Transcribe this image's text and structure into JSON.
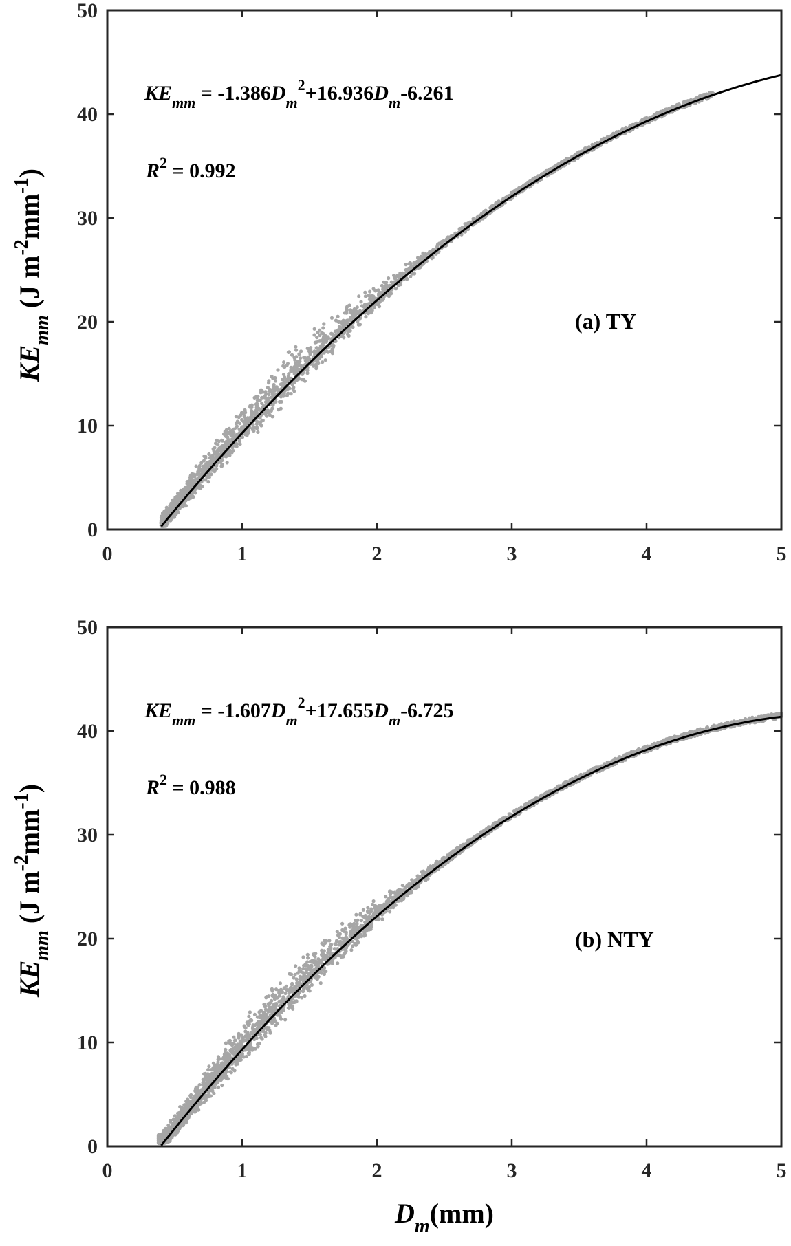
{
  "chart_data": [
    {
      "type": "scatter",
      "panel_label": "(a) TY",
      "equation": {
        "lhs": "KE",
        "lhs_sub": "mm",
        "eq": " = -1.386",
        "var1": "D",
        "var1_sub": "m",
        "pow": "2",
        "mid": "+16.936",
        "var2": "D",
        "var2_sub": "m",
        "tail": "-6.261"
      },
      "r2": {
        "R": "R",
        "sup": "2",
        "text": " = 0.992"
      },
      "fit": {
        "a": -1.386,
        "b": 16.936,
        "c": -6.261,
        "x_start": 0.4,
        "x_end": 5.0
      },
      "scatter_range": {
        "x_min": 0.4,
        "x_max": 4.5,
        "count": 2600,
        "seed": 7
      },
      "xlim": [
        0,
        5
      ],
      "ylim": [
        0,
        50
      ],
      "xticks": [
        "0",
        "1",
        "2",
        "3",
        "4",
        "5"
      ],
      "yticks": [
        "0",
        "10",
        "20",
        "30",
        "40",
        "50"
      ],
      "ylabel": {
        "main": "KE",
        "sub": "mm",
        "unit": " (J m",
        "sup1": "-2",
        "mid": "mm",
        "sup2": "-1",
        "end": ")"
      },
      "point_color": "#a6a6a6",
      "line_color": "#000000"
    },
    {
      "type": "scatter",
      "panel_label": "(b) NTY",
      "equation": {
        "lhs": "KE",
        "lhs_sub": "mm",
        "eq": " = -1.607",
        "var1": "D",
        "var1_sub": "m",
        "pow": "2",
        "mid": "+17.655",
        "var2": "D",
        "var2_sub": "m",
        "tail": "-6.725"
      },
      "r2": {
        "R": "R",
        "sup": "2",
        "text": " = 0.988"
      },
      "fit": {
        "a": -1.607,
        "b": 17.655,
        "c": -6.725,
        "x_start": 0.4,
        "x_end": 5.0
      },
      "scatter_range": {
        "x_min": 0.38,
        "x_max": 5.0,
        "count": 3400,
        "seed": 13
      },
      "xlim": [
        0,
        5
      ],
      "ylim": [
        0,
        50
      ],
      "xticks": [
        "0",
        "1",
        "2",
        "3",
        "4",
        "5"
      ],
      "yticks": [
        "0",
        "10",
        "20",
        "30",
        "40",
        "50"
      ],
      "xlabel": {
        "main": "D",
        "sub": "m",
        "unit": "(mm)"
      },
      "ylabel": {
        "main": "KE",
        "sub": "mm",
        "unit": " (J m",
        "sup1": "-2",
        "mid": "mm",
        "sup2": "-1",
        "end": ")"
      },
      "point_color": "#a6a6a6",
      "line_color": "#000000"
    }
  ]
}
